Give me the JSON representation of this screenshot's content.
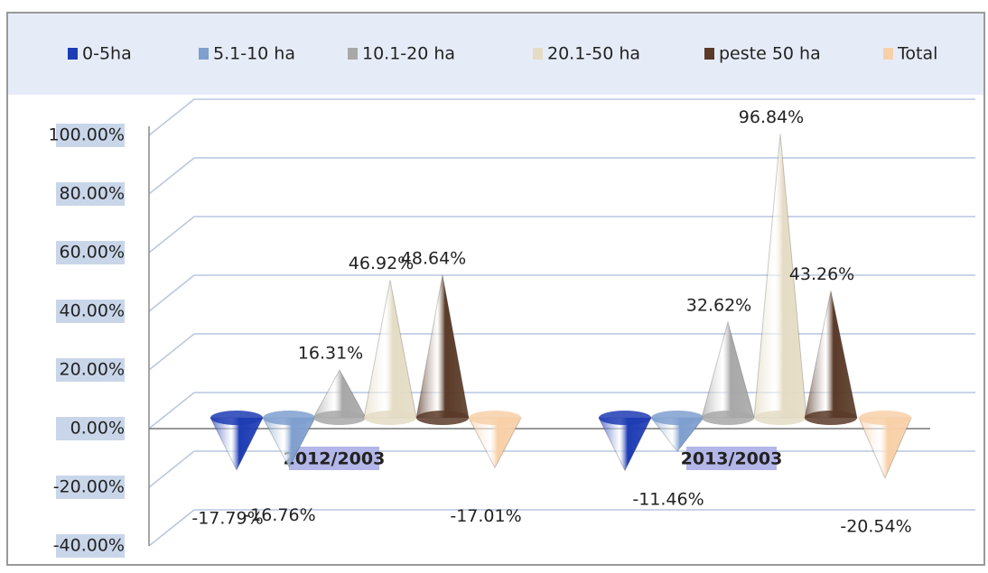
{
  "chart_data": {
    "type": "cone",
    "categories": [
      "2012/2003",
      "2013/2003"
    ],
    "series": [
      {
        "name": "0-5ha",
        "color": "#1e3cb4",
        "values": [
          -17.79,
          -18
        ],
        "value_labels": [
          "-17.79%",
          null
        ]
      },
      {
        "name": "5.1-10 ha",
        "color": "#7f9fcf",
        "values": [
          -16.76,
          -11.46
        ],
        "value_labels": [
          "-16.76%",
          "-11.46%"
        ]
      },
      {
        "name": "10.1-20 ha",
        "color": "#a8a8a8",
        "values": [
          16.31,
          32.62
        ],
        "value_labels": [
          "16.31%",
          "32.62%"
        ]
      },
      {
        "name": "20.1-50 ha",
        "color": "#e4dcc4",
        "values": [
          46.92,
          96.84
        ],
        "value_labels": [
          "46.92%",
          "96.84%"
        ]
      },
      {
        "name": "peste 50 ha",
        "color": "#5a3a28",
        "values": [
          48.64,
          43.26
        ],
        "value_labels": [
          "48.64%",
          "43.26%"
        ]
      },
      {
        "name": "Total",
        "color": "#f8d0a8",
        "values": [
          -17.01,
          -20.54
        ],
        "value_labels": [
          "-17.01%",
          "-20.54%"
        ]
      }
    ],
    "ylim": [
      -40,
      100
    ],
    "yticks": [
      {
        "value": -40,
        "label": "-40.00%"
      },
      {
        "value": -20,
        "label": "-20.00%"
      },
      {
        "value": 0,
        "label": "0.00%"
      },
      {
        "value": 20,
        "label": "20.00%"
      },
      {
        "value": 40,
        "label": "40.00%"
      },
      {
        "value": 60,
        "label": "60.00%"
      },
      {
        "value": 80,
        "label": "80.00%"
      },
      {
        "value": 100,
        "label": "100.00%"
      }
    ],
    "grid": true,
    "legend": "top"
  }
}
